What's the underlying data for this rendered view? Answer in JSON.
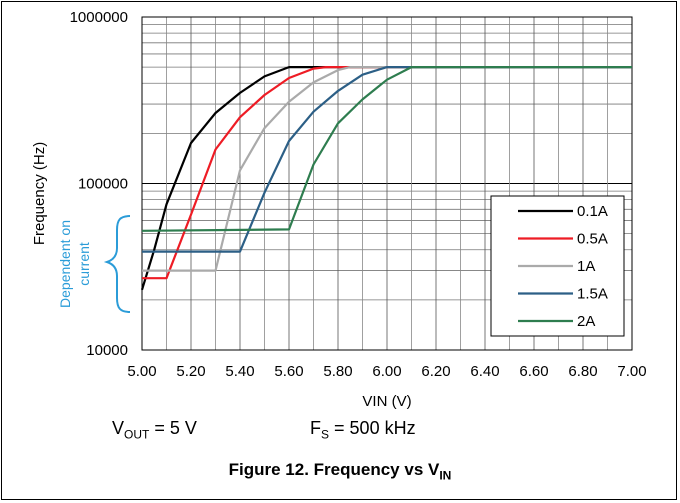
{
  "chart_data": {
    "type": "line",
    "xlabel": "VIN (V)",
    "ylabel": "Frequency (Hz)",
    "xlim": [
      5.0,
      7.0
    ],
    "ylim": [
      10000,
      1000000
    ],
    "yscale": "log",
    "grid": true,
    "x_ticks": [
      "5.00",
      "5.20",
      "5.40",
      "5.60",
      "5.80",
      "6.00",
      "6.20",
      "6.40",
      "6.60",
      "6.80",
      "7.00"
    ],
    "y_ticks": [
      "1000000",
      "100000",
      "10000"
    ],
    "legend_position": "bottom-right",
    "series": [
      {
        "name": "0.1A",
        "color": "#000000",
        "x": [
          5.0,
          5.05,
          5.1,
          5.2,
          5.3,
          5.4,
          5.5,
          5.6,
          5.65,
          7.0
        ],
        "y": [
          23000,
          40000,
          75000,
          175000,
          265000,
          350000,
          440000,
          500000,
          500000,
          500000
        ]
      },
      {
        "name": "0.5A",
        "color": "#ee1c25",
        "x": [
          5.0,
          5.1,
          5.2,
          5.3,
          5.4,
          5.5,
          5.6,
          5.7,
          5.75,
          7.0
        ],
        "y": [
          27000,
          27000,
          65000,
          160000,
          250000,
          340000,
          430000,
          490000,
          500000,
          500000
        ]
      },
      {
        "name": "1A",
        "color": "#aaaaaa",
        "x": [
          5.0,
          5.3,
          5.4,
          5.5,
          5.6,
          5.7,
          5.8,
          5.85,
          7.0
        ],
        "y": [
          30000,
          30000,
          120000,
          215000,
          310000,
          405000,
          480000,
          500000,
          500000
        ]
      },
      {
        "name": "1.5A",
        "color": "#2c5f86",
        "x": [
          5.0,
          5.4,
          5.5,
          5.6,
          5.7,
          5.8,
          5.9,
          6.0,
          7.0
        ],
        "y": [
          39000,
          39000,
          88000,
          180000,
          270000,
          360000,
          450000,
          500000,
          500000
        ]
      },
      {
        "name": "2A",
        "color": "#2e7d4f",
        "x": [
          5.0,
          5.6,
          5.7,
          5.8,
          5.9,
          6.0,
          6.1,
          7.0
        ],
        "y": [
          52000,
          53000,
          130000,
          230000,
          320000,
          420000,
          500000,
          500000
        ]
      }
    ]
  },
  "annotation": {
    "text_lines": [
      "Dependent on",
      "current"
    ],
    "color": "#2b9cd8"
  },
  "conditions": {
    "vout_main": "V",
    "vout_sub": "OUT",
    "vout_rest": "= 5 V",
    "fs_main": "F",
    "fs_sub": "S",
    "fs_rest": "= 500 kHz"
  },
  "figure_caption": {
    "main": "Figure 12. Frequency vs V",
    "sub": "IN"
  }
}
